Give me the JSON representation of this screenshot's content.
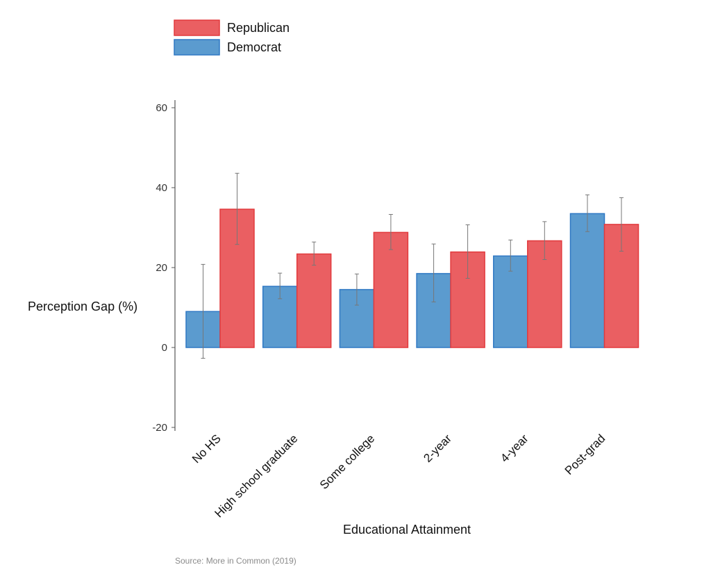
{
  "chart_data": {
    "type": "bar",
    "title": "",
    "xlabel": "Educational Attainment",
    "ylabel": "Perception Gap (%)",
    "ylim": [
      -20,
      60
    ],
    "yticks": [
      -20,
      0,
      20,
      40,
      60
    ],
    "grid": false,
    "legend_position": "top-left",
    "categories": [
      "No HS",
      "High school graduate",
      "Some college",
      "2-year",
      "4-year",
      "Post-grad"
    ],
    "series": [
      {
        "name": "Democrat",
        "color": "#5b9bcf",
        "stroke": "#2f78c4",
        "values": [
          9.0,
          15.3,
          14.5,
          18.5,
          22.9,
          33.5
        ],
        "error_low": [
          -2.7,
          12.2,
          10.6,
          11.4,
          19.1,
          29.0
        ],
        "error_high": [
          20.8,
          18.6,
          18.4,
          25.9,
          26.9,
          38.2
        ]
      },
      {
        "name": "Republican",
        "color": "#ea5f62",
        "stroke": "#e23a3d",
        "values": [
          34.6,
          23.4,
          28.8,
          23.9,
          26.7,
          30.8
        ],
        "error_low": [
          25.8,
          20.6,
          24.5,
          17.3,
          22.0,
          24.1
        ],
        "error_high": [
          43.6,
          26.4,
          33.3,
          30.7,
          31.5,
          37.5
        ]
      }
    ],
    "legend_order": [
      "Republican",
      "Democrat"
    ],
    "source": "Source: More in Common (2019)"
  }
}
